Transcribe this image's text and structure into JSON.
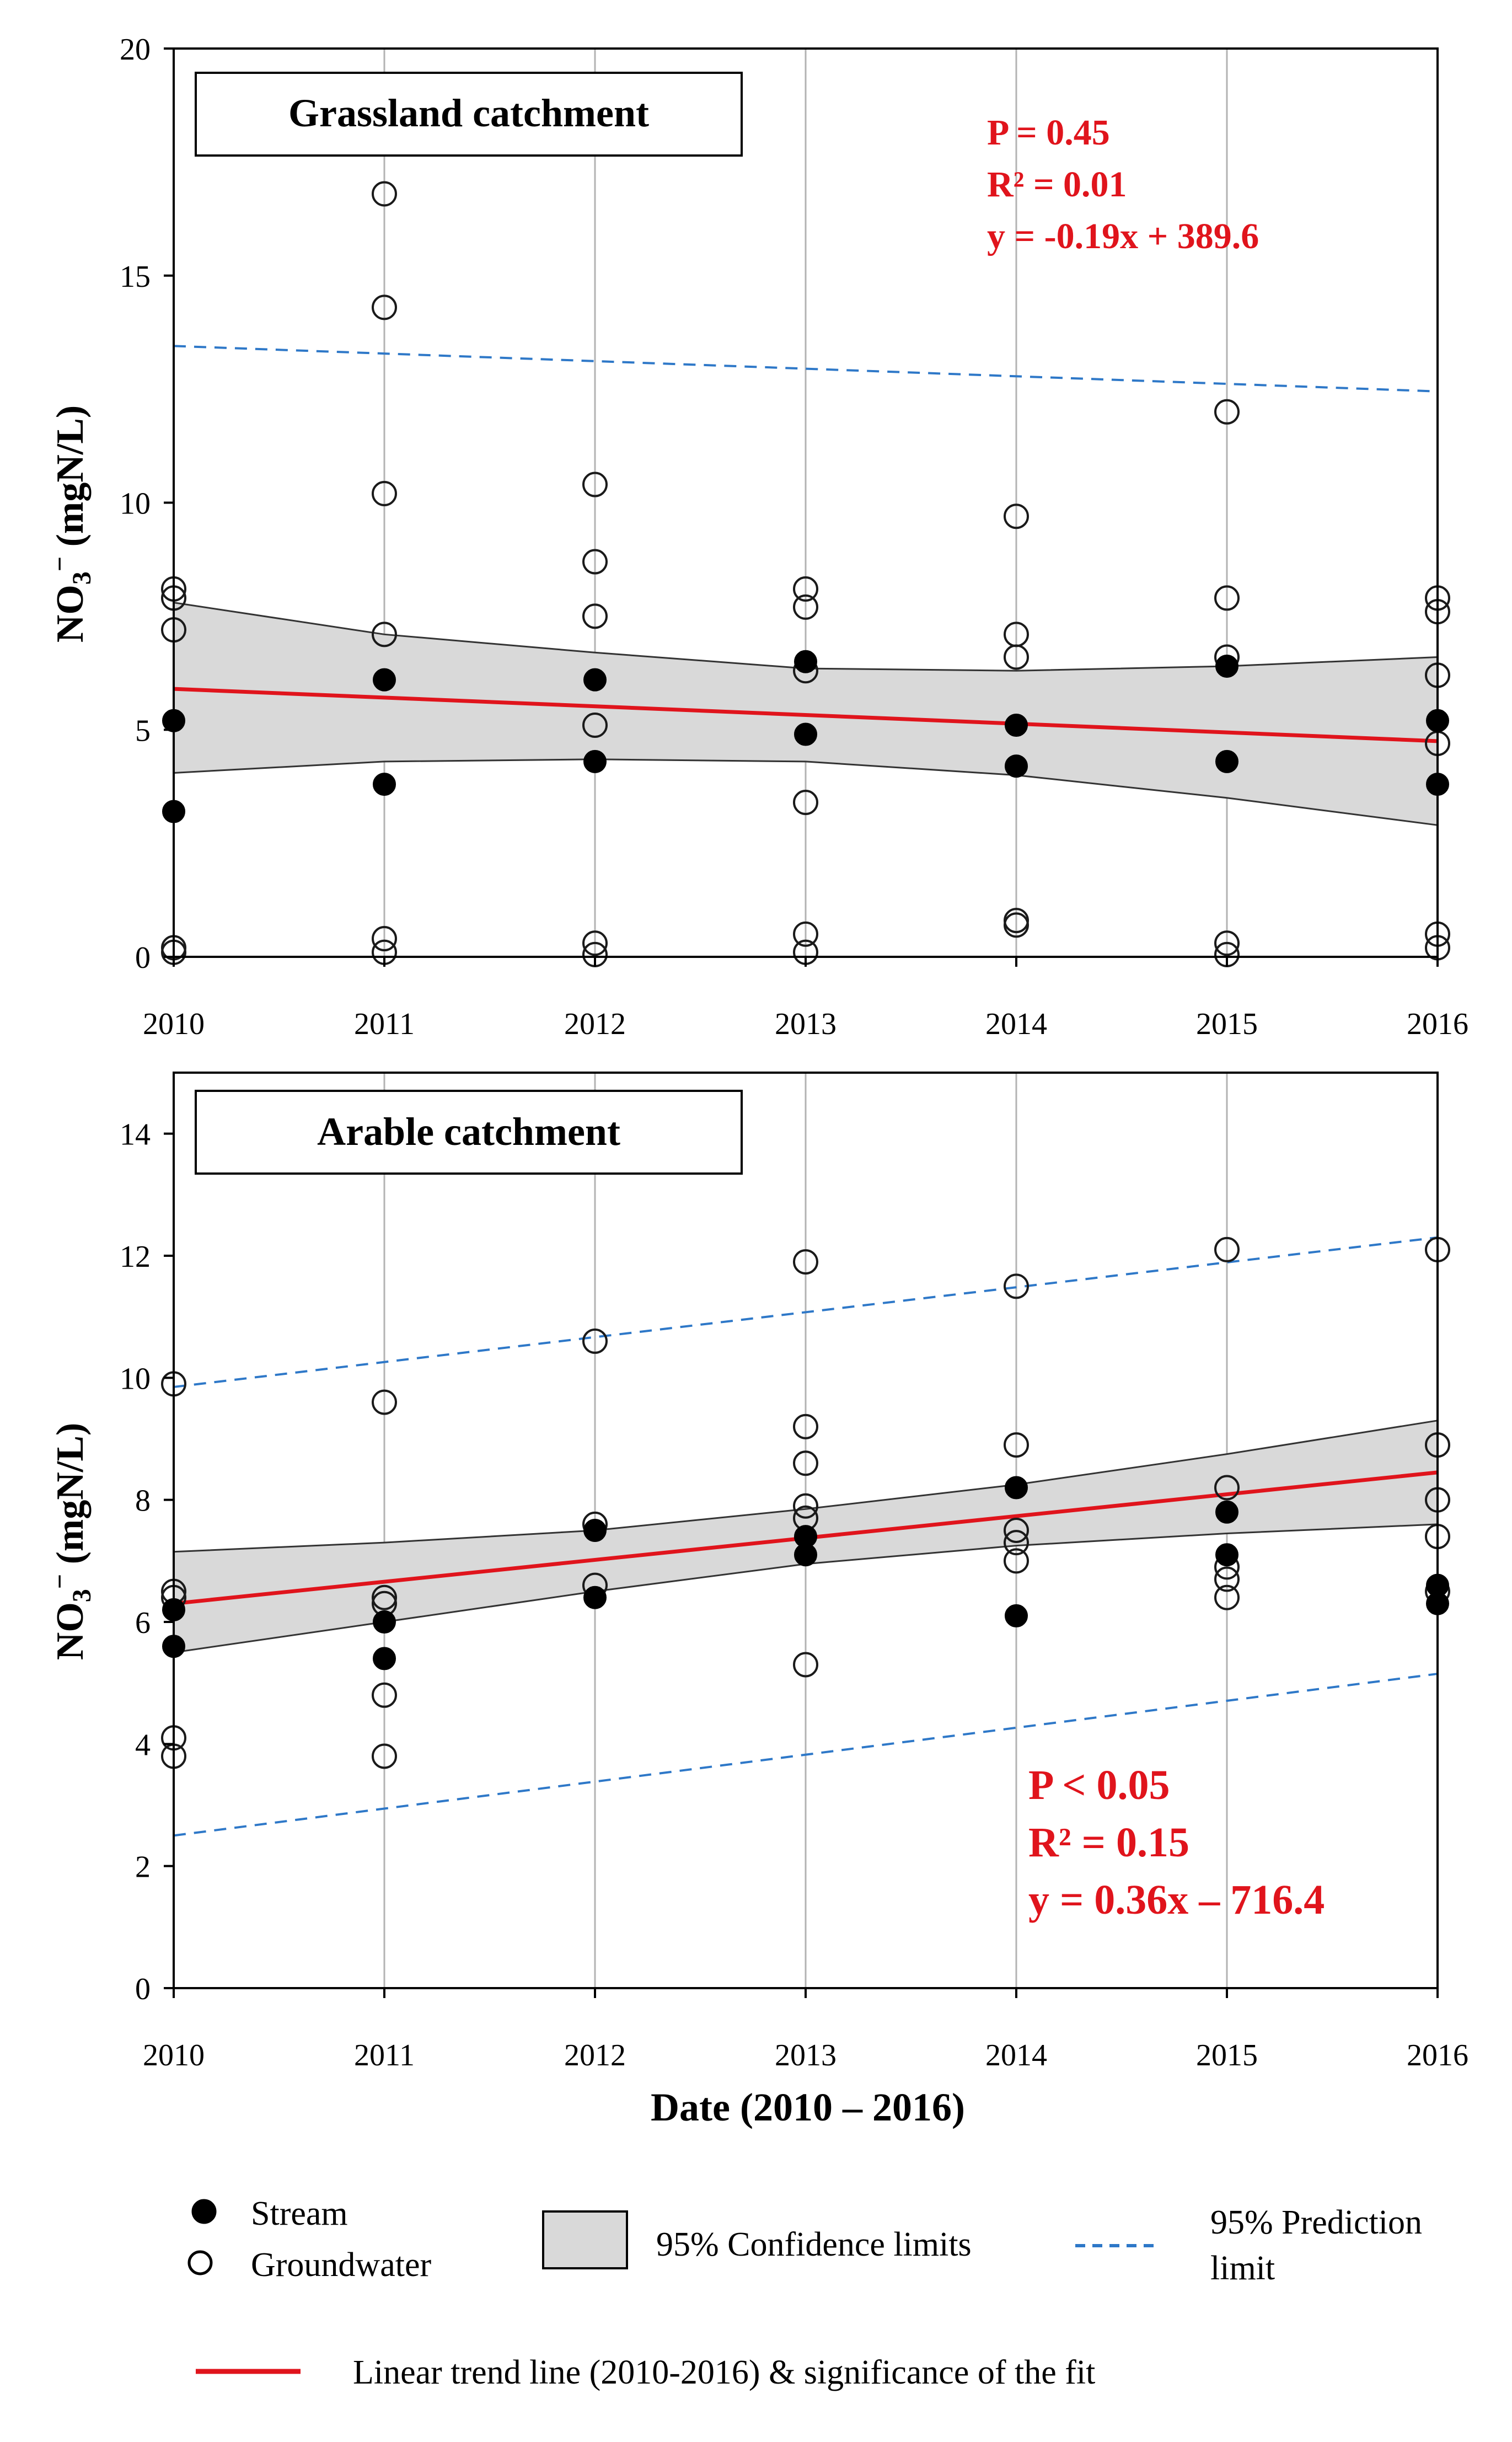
{
  "figure": {
    "xlabel": "Date (2010 – 2016)",
    "ylabel": "NO₃⁻ (mgN/L)",
    "colors": {
      "trend": "#e0141c",
      "prediction": "#2e78c8",
      "ci_fill": "#d9d9d9",
      "stats_text": "#e0141c"
    }
  },
  "legend": {
    "stream": "Stream",
    "groundwater": "Groundwater",
    "confidence": "95% Confidence limits",
    "prediction_line1": "95% Prediction",
    "prediction_line2": "limit",
    "trend": "Linear trend line (2010-2016) & significance of the fit"
  },
  "chart_data": [
    {
      "type": "scatter",
      "title": "Grassland catchment",
      "xlabel": "Date (2010 – 2016)",
      "ylabel": "NO₃⁻ (mgN/L)",
      "xlim": [
        2010,
        2016
      ],
      "ylim": [
        0,
        20
      ],
      "yticks": [
        0,
        5,
        10,
        15,
        20
      ],
      "xticks": [
        2010,
        2011,
        2012,
        2013,
        2014,
        2015,
        2016
      ],
      "grid": "vertical",
      "stats": [
        "P = 0.45",
        "R² = 0.01",
        "y = -0.19x + 389.6"
      ],
      "series": [
        {
          "name": "Stream",
          "points": [
            [
              2010,
              5.2
            ],
            [
              2010,
              3.2
            ],
            [
              2011,
              6.1
            ],
            [
              2011,
              3.8
            ],
            [
              2012,
              6.1
            ],
            [
              2012,
              4.3
            ],
            [
              2013,
              6.5
            ],
            [
              2013,
              4.9
            ],
            [
              2014,
              5.1
            ],
            [
              2014,
              4.2
            ],
            [
              2015,
              6.4
            ],
            [
              2015,
              4.3
            ],
            [
              2016,
              5.2
            ],
            [
              2016,
              3.8
            ]
          ]
        },
        {
          "name": "Groundwater",
          "points": [
            [
              2010,
              8.1
            ],
            [
              2010,
              7.9
            ],
            [
              2010,
              7.2
            ],
            [
              2010,
              0.2
            ],
            [
              2010,
              0.1
            ],
            [
              2011,
              16.8
            ],
            [
              2011,
              14.3
            ],
            [
              2011,
              10.2
            ],
            [
              2011,
              7.1
            ],
            [
              2011,
              0.4
            ],
            [
              2011,
              0.1
            ],
            [
              2012,
              10.4
            ],
            [
              2012,
              8.7
            ],
            [
              2012,
              7.5
            ],
            [
              2012,
              5.1
            ],
            [
              2012,
              0.3
            ],
            [
              2012,
              0.05
            ],
            [
              2013,
              8.1
            ],
            [
              2013,
              7.7
            ],
            [
              2013,
              6.3
            ],
            [
              2013,
              3.4
            ],
            [
              2013,
              0.5
            ],
            [
              2013,
              0.1
            ],
            [
              2014,
              9.7
            ],
            [
              2014,
              7.1
            ],
            [
              2014,
              6.6
            ],
            [
              2014,
              0.8
            ],
            [
              2014,
              0.7
            ],
            [
              2015,
              12.0
            ],
            [
              2015,
              7.9
            ],
            [
              2015,
              6.6
            ],
            [
              2015,
              0.3
            ],
            [
              2015,
              0.05
            ],
            [
              2016,
              7.9
            ],
            [
              2016,
              7.6
            ],
            [
              2016,
              6.2
            ],
            [
              2016,
              4.7
            ],
            [
              2016,
              0.5
            ],
            [
              2016,
              0.2
            ]
          ]
        },
        {
          "name": "Linear trend line",
          "points": [
            [
              2010,
              5.9
            ],
            [
              2016,
              4.75
            ]
          ]
        },
        {
          "name": "95% Confidence limits (upper)",
          "points": [
            [
              2010,
              7.8
            ],
            [
              2011,
              7.1
            ],
            [
              2012,
              6.7
            ],
            [
              2013,
              6.35
            ],
            [
              2014,
              6.3
            ],
            [
              2015,
              6.4
            ],
            [
              2016,
              6.6
            ]
          ]
        },
        {
          "name": "95% Confidence limits (lower)",
          "points": [
            [
              2010,
              4.05
            ],
            [
              2011,
              4.3
            ],
            [
              2012,
              4.35
            ],
            [
              2013,
              4.3
            ],
            [
              2014,
              4.0
            ],
            [
              2015,
              3.5
            ],
            [
              2016,
              2.9
            ]
          ]
        },
        {
          "name": "95% Prediction limit",
          "points": [
            [
              2010,
              13.45
            ],
            [
              2016,
              12.45
            ]
          ]
        }
      ]
    },
    {
      "type": "scatter",
      "title": "Arable catchment",
      "xlabel": "Date (2010 – 2016)",
      "ylabel": "NO₃⁻ (mgN/L)",
      "xlim": [
        2010,
        2016
      ],
      "ylim": [
        0,
        15
      ],
      "yticks": [
        0,
        2,
        4,
        6,
        8,
        10,
        12,
        14
      ],
      "xticks": [
        2010,
        2011,
        2012,
        2013,
        2014,
        2015,
        2016
      ],
      "grid": "vertical",
      "stats": [
        "P < 0.05",
        "R² = 0.15",
        "y = 0.36x – 716.4"
      ],
      "series": [
        {
          "name": "Stream",
          "points": [
            [
              2010,
              6.2
            ],
            [
              2010,
              5.6
            ],
            [
              2011,
              6.0
            ],
            [
              2011,
              5.4
            ],
            [
              2012,
              7.5
            ],
            [
              2012,
              6.4
            ],
            [
              2013,
              7.4
            ],
            [
              2013,
              7.1
            ],
            [
              2014,
              8.2
            ],
            [
              2014,
              6.1
            ],
            [
              2015,
              7.8
            ],
            [
              2015,
              7.1
            ],
            [
              2016,
              6.6
            ],
            [
              2016,
              6.3
            ]
          ]
        },
        {
          "name": "Groundwater",
          "points": [
            [
              2010,
              9.9
            ],
            [
              2010,
              6.5
            ],
            [
              2010,
              6.4
            ],
            [
              2010,
              4.1
            ],
            [
              2010,
              3.8
            ],
            [
              2011,
              9.6
            ],
            [
              2011,
              6.4
            ],
            [
              2011,
              6.3
            ],
            [
              2011,
              4.8
            ],
            [
              2011,
              3.8
            ],
            [
              2012,
              10.6
            ],
            [
              2012,
              7.6
            ],
            [
              2012,
              6.6
            ],
            [
              2013,
              11.9
            ],
            [
              2013,
              9.2
            ],
            [
              2013,
              8.6
            ],
            [
              2013,
              7.9
            ],
            [
              2013,
              7.7
            ],
            [
              2013,
              5.3
            ],
            [
              2014,
              11.5
            ],
            [
              2014,
              8.9
            ],
            [
              2014,
              7.5
            ],
            [
              2014,
              7.3
            ],
            [
              2014,
              7.0
            ],
            [
              2015,
              12.1
            ],
            [
              2015,
              8.2
            ],
            [
              2015,
              6.9
            ],
            [
              2015,
              6.7
            ],
            [
              2015,
              6.4
            ],
            [
              2016,
              12.1
            ],
            [
              2016,
              8.9
            ],
            [
              2016,
              8.0
            ],
            [
              2016,
              7.4
            ],
            [
              2016,
              6.5
            ]
          ]
        },
        {
          "name": "Linear trend line",
          "points": [
            [
              2010,
              6.3
            ],
            [
              2016,
              8.45
            ]
          ]
        },
        {
          "name": "95% Confidence limits (upper)",
          "points": [
            [
              2010,
              7.15
            ],
            [
              2011,
              7.3
            ],
            [
              2012,
              7.5
            ],
            [
              2013,
              7.85
            ],
            [
              2014,
              8.25
            ],
            [
              2015,
              8.75
            ],
            [
              2016,
              9.3
            ]
          ]
        },
        {
          "name": "95% Confidence limits (lower)",
          "points": [
            [
              2010,
              5.5
            ],
            [
              2011,
              6.0
            ],
            [
              2012,
              6.5
            ],
            [
              2013,
              6.95
            ],
            [
              2014,
              7.25
            ],
            [
              2015,
              7.45
            ],
            [
              2016,
              7.6
            ]
          ]
        },
        {
          "name": "95% Prediction limit (upper)",
          "points": [
            [
              2010,
              9.85
            ],
            [
              2016,
              12.3
            ]
          ]
        },
        {
          "name": "95% Prediction limit (lower)",
          "points": [
            [
              2010,
              2.5
            ],
            [
              2016,
              5.15
            ]
          ]
        }
      ]
    }
  ]
}
